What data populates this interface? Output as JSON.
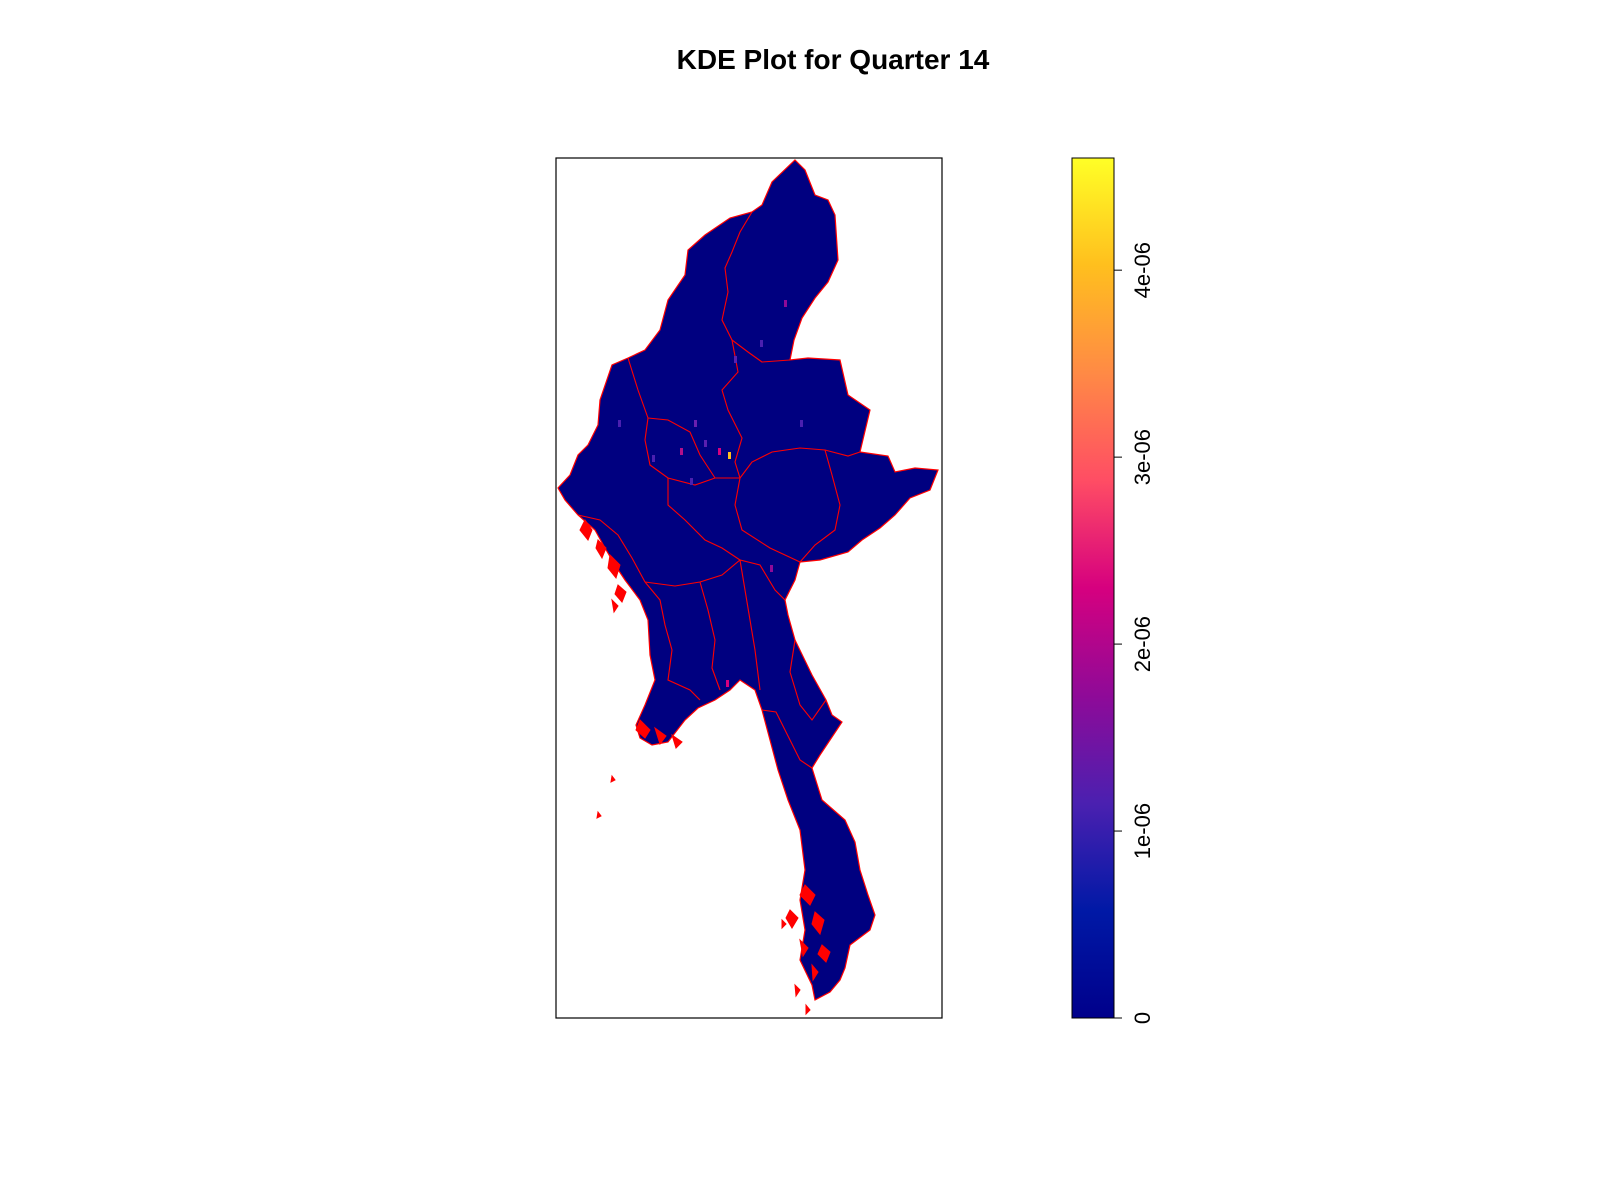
{
  "title": "KDE Plot for Quarter 14",
  "map": {
    "fill_color": "#000080",
    "boundary_color": "#ff0000",
    "frame_color": "#000000"
  },
  "legend": {
    "gradient": [
      "#00008b",
      "#0019a6",
      "#4b20b0",
      "#8f0a98",
      "#d6007f",
      "#ff4d64",
      "#ff8a45",
      "#ffbf1e",
      "#ffff26"
    ],
    "ticks": [
      {
        "value": 0,
        "label": "0"
      },
      {
        "value": 1e-06,
        "label": "1e-06"
      },
      {
        "value": 2e-06,
        "label": "2e-06"
      },
      {
        "value": 3e-06,
        "label": "3e-06"
      },
      {
        "value": 4e-06,
        "label": "4e-06"
      }
    ],
    "max": 4.6e-06
  },
  "chart_data": {
    "type": "heatmap",
    "title": "KDE Plot for Quarter 14",
    "value_range": [
      0,
      4.6e-06
    ],
    "colorbar_ticks": [
      "0",
      "1e-06",
      "2e-06",
      "3e-06",
      "4e-06"
    ],
    "palette": "plasma-like (dark blue to yellow)",
    "grid": false,
    "legend_placement": "right"
  }
}
